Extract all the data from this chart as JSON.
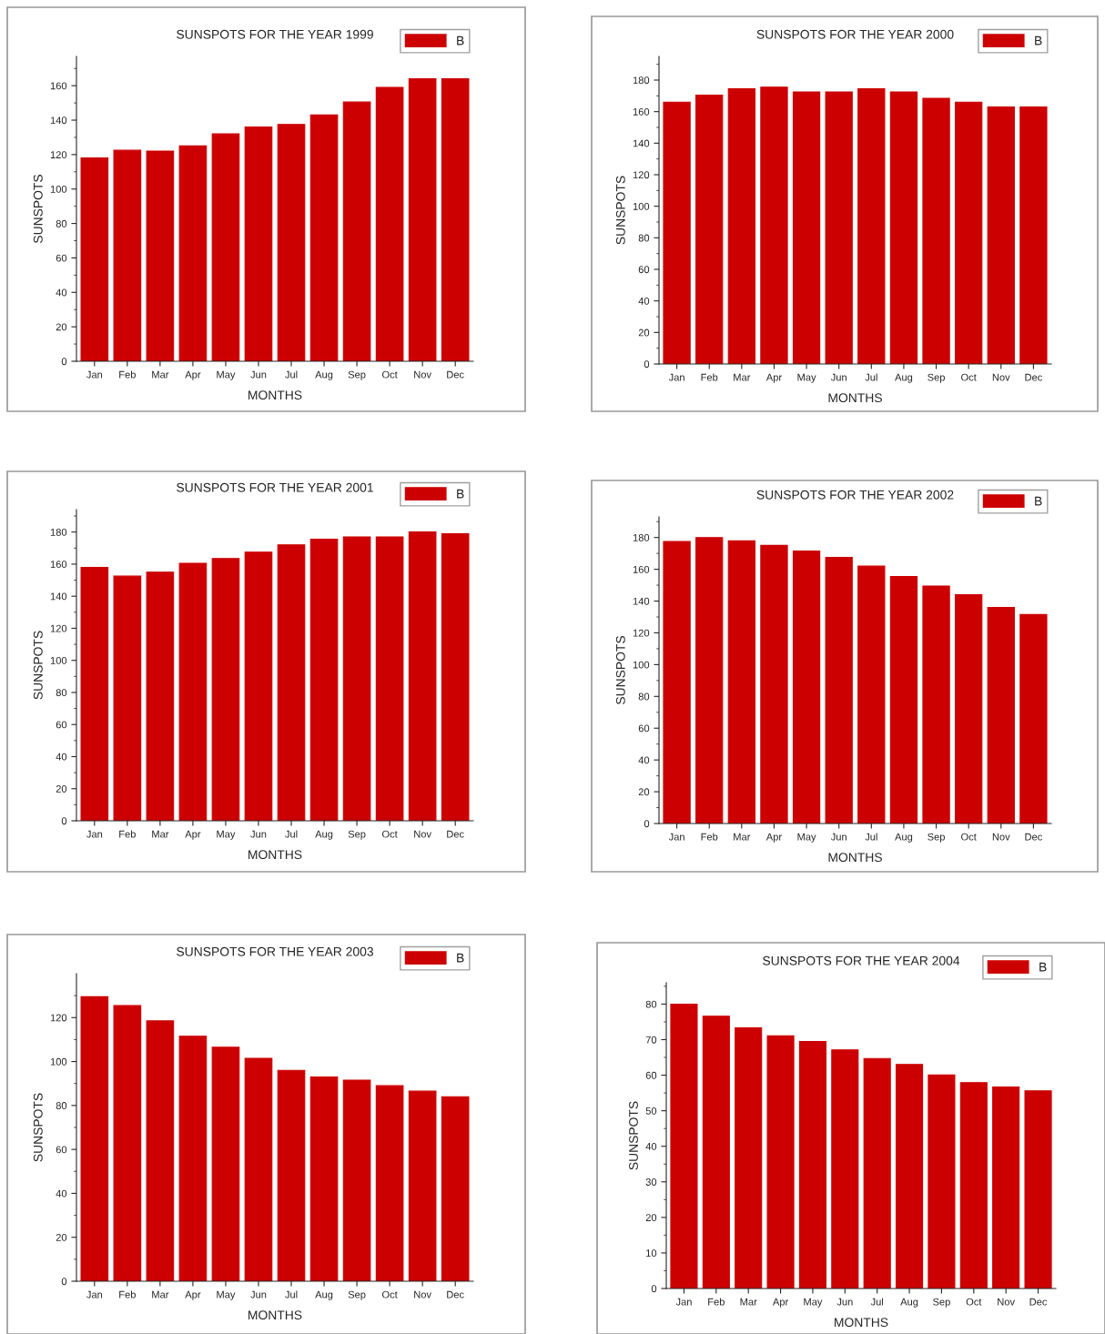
{
  "chart_data": [
    {
      "type": "bar",
      "title": "SUNSPOTS FOR THE YEAR 1999",
      "xlabel": "MONTHS",
      "ylabel": "SUNSPOTS",
      "categories": [
        "Jan",
        "Feb",
        "Mar",
        "Apr",
        "May",
        "Jun",
        "Jul",
        "Aug",
        "Sep",
        "Oct",
        "Nov",
        "Dec"
      ],
      "series": [
        {
          "name": "B",
          "color": "#cc0000",
          "values": [
            118,
            122.5,
            122,
            125,
            132,
            136,
            137.5,
            143,
            150.5,
            159,
            164,
            164
          ]
        }
      ],
      "ylim": [
        0,
        177
      ],
      "yticks": [
        0,
        20,
        40,
        60,
        80,
        100,
        120,
        140,
        160
      ],
      "legend": "top right"
    },
    {
      "type": "bar",
      "title": "SUNSPOTS FOR THE YEAR 2000",
      "xlabel": "MONTHS",
      "ylabel": "SUNSPOTS",
      "categories": [
        "Jan",
        "Feb",
        "Mar",
        "Apr",
        "May",
        "Jun",
        "Jul",
        "Aug",
        "Sep",
        "Oct",
        "Nov",
        "Dec"
      ],
      "series": [
        {
          "name": "B",
          "color": "#cc0000",
          "values": [
            166,
            170.5,
            174.5,
            175.5,
            172.5,
            172.5,
            174.5,
            172.5,
            168.5,
            166,
            163,
            163
          ]
        }
      ],
      "ylim": [
        0,
        195
      ],
      "yticks": [
        0,
        20,
        40,
        60,
        80,
        100,
        120,
        140,
        160,
        180
      ],
      "legend": "top right"
    },
    {
      "type": "bar",
      "title": "SUNSPOTS FOR THE YEAR 2001",
      "xlabel": "MONTHS",
      "ylabel": "SUNSPOTS",
      "categories": [
        "Jan",
        "Feb",
        "Mar",
        "Apr",
        "May",
        "Jun",
        "Jul",
        "Aug",
        "Sep",
        "Oct",
        "Nov",
        "Dec"
      ],
      "series": [
        {
          "name": "B",
          "color": "#cc0000",
          "values": [
            158,
            152.5,
            155,
            160.5,
            163.5,
            167.5,
            172,
            175.5,
            177,
            177,
            180,
            179
          ]
        }
      ],
      "ylim": [
        0,
        194
      ],
      "yticks": [
        0,
        20,
        40,
        60,
        80,
        100,
        120,
        140,
        160,
        180
      ],
      "legend": "top right"
    },
    {
      "type": "bar",
      "title": "SUNSPOTS FOR THE YEAR 2002",
      "xlabel": "MONTHS",
      "ylabel": "SUNSPOTS",
      "categories": [
        "Jan",
        "Feb",
        "Mar",
        "Apr",
        "May",
        "Jun",
        "Jul",
        "Aug",
        "Sep",
        "Oct",
        "Nov",
        "Dec"
      ],
      "series": [
        {
          "name": "B",
          "color": "#cc0000",
          "values": [
            177.5,
            180,
            178,
            175,
            171.5,
            167.5,
            162,
            155.5,
            149.5,
            144,
            136,
            131.5
          ]
        }
      ],
      "ylim": [
        0,
        193
      ],
      "yticks": [
        0,
        20,
        40,
        60,
        80,
        100,
        120,
        140,
        160,
        180
      ],
      "legend": "top right"
    },
    {
      "type": "bar",
      "title": "SUNSPOTS FOR THE YEAR 2003",
      "xlabel": "MONTHS",
      "ylabel": "SUNSPOTS",
      "categories": [
        "Jan",
        "Feb",
        "Mar",
        "Apr",
        "May",
        "Jun",
        "Jul",
        "Aug",
        "Sep",
        "Oct",
        "Nov",
        "Dec"
      ],
      "series": [
        {
          "name": "B",
          "color": "#cc0000",
          "values": [
            129.5,
            125.5,
            118.5,
            111.5,
            106.5,
            101.5,
            96,
            93,
            91.5,
            89,
            86.5,
            84
          ]
        }
      ],
      "ylim": [
        0,
        140
      ],
      "yticks": [
        0,
        20,
        40,
        60,
        80,
        100,
        120
      ],
      "legend": "top right"
    },
    {
      "type": "bar",
      "title": "SUNSPOTS FOR THE YEAR 2004",
      "xlabel": "MONTHS",
      "ylabel": "SUNSPOTS",
      "categories": [
        "Jan",
        "Feb",
        "Mar",
        "Apr",
        "May",
        "Jun",
        "Jul",
        "Aug",
        "Sep",
        "Oct",
        "Nov",
        "Dec"
      ],
      "series": [
        {
          "name": "B",
          "color": "#cc0000",
          "values": [
            80,
            76.6,
            73.3,
            71.1,
            69.5,
            67.1,
            64.7,
            63,
            60.1,
            57.9,
            56.7,
            55.6
          ]
        }
      ],
      "ylim": [
        0,
        86
      ],
      "yticks": [
        0,
        10,
        20,
        30,
        40,
        50,
        60,
        70,
        80
      ],
      "legend": "top right"
    }
  ]
}
